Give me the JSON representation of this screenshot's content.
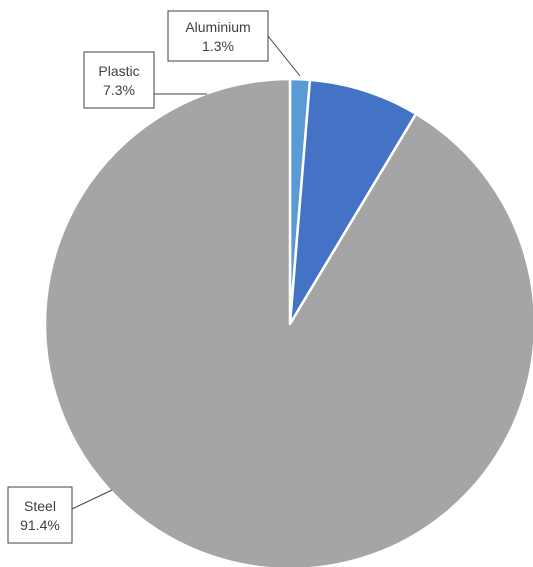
{
  "chart_data": {
    "type": "pie",
    "title": "",
    "slices": [
      {
        "label": "Aluminium",
        "value": 1.3,
        "display": "1.3%",
        "color": "#5B9BD5"
      },
      {
        "label": "Plastic",
        "value": 7.3,
        "display": "7.3%",
        "color": "#4472C4"
      },
      {
        "label": "Steel",
        "value": 91.4,
        "display": "91.4%",
        "color": "#A5A5A5"
      }
    ],
    "start_angle_deg": 0,
    "direction": "clockwise",
    "legend": "none",
    "data_labels": "callouts-with-leader-lines"
  }
}
